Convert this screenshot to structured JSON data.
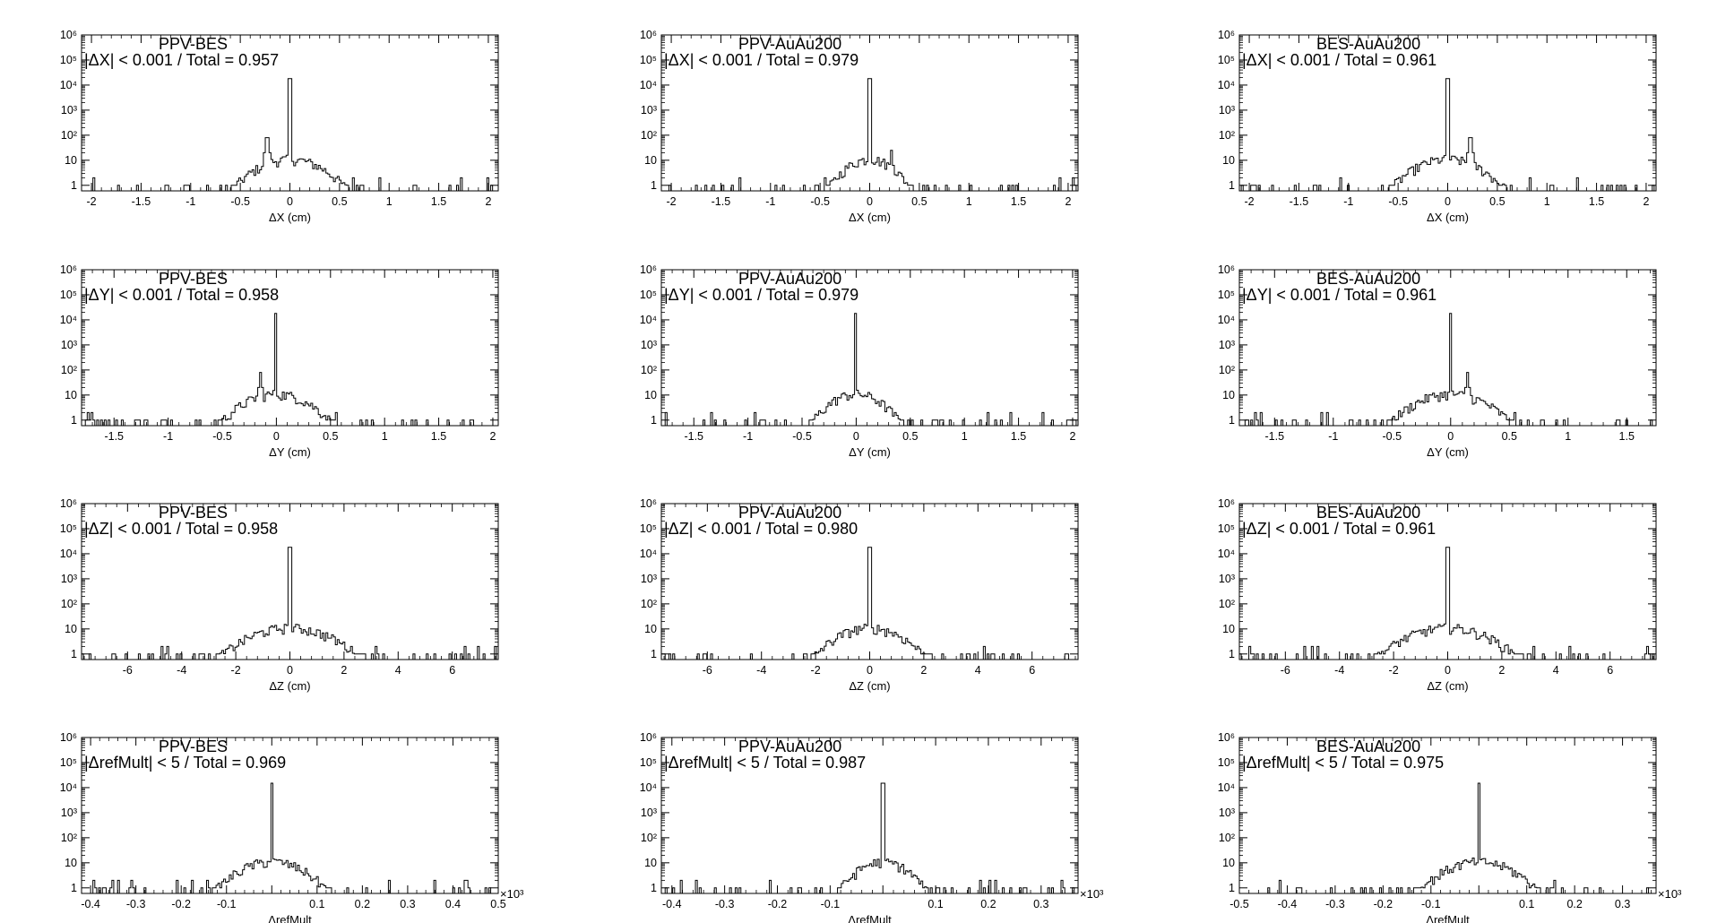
{
  "chart_data": [
    {
      "type": "histogram",
      "dataset": "PPV-BES",
      "ratio_text": "|ΔX| < 0.001 / Total = 0.957",
      "xlabel": "ΔX (cm)",
      "xlim": [
        -2.1,
        2.1
      ],
      "xticks": [
        "-2",
        "-1.5",
        "-1",
        "-0.5",
        "0",
        "0.5",
        "1",
        "1.5",
        "2"
      ],
      "yscale": "log",
      "ylim": [
        0.6,
        1000000
      ],
      "yticks": [
        "1",
        "10",
        "10²",
        "10³",
        "10⁴",
        "10⁵",
        "10⁶"
      ],
      "peak": {
        "x": 0,
        "y": 18000
      },
      "side_peaks": [
        {
          "x": -0.23,
          "y": 80
        }
      ],
      "spread": 0.55,
      "baseline": "1"
    },
    {
      "type": "histogram",
      "dataset": "PPV-AuAu200",
      "ratio_text": "|ΔX| < 0.001 / Total = 0.979",
      "xlabel": "ΔX (cm)",
      "xlim": [
        -2.1,
        2.1
      ],
      "xticks": [
        "-2",
        "-1.5",
        "-1",
        "-0.5",
        "0",
        "0.5",
        "1",
        "1.5",
        "2"
      ],
      "yscale": "log",
      "ylim": [
        0.6,
        1000000
      ],
      "yticks": [
        "1",
        "10",
        "10²",
        "10³",
        "10⁴",
        "10⁵",
        "10⁶"
      ],
      "peak": {
        "x": 0,
        "y": 18000
      },
      "side_peaks": [
        {
          "x": 0.22,
          "y": 25
        }
      ],
      "spread": 0.4,
      "baseline": "1"
    },
    {
      "type": "histogram",
      "dataset": "BES-AuAu200",
      "ratio_text": "|ΔX| < 0.001 / Total = 0.961",
      "xlabel": "ΔX (cm)",
      "xlim": [
        -2.1,
        2.1
      ],
      "xticks": [
        "-2",
        "-1.5",
        "-1",
        "-0.5",
        "0",
        "0.5",
        "1",
        "1.5",
        "2"
      ],
      "yscale": "log",
      "ylim": [
        0.6,
        1000000
      ],
      "yticks": [
        "1",
        "10",
        "10²",
        "10³",
        "10⁴",
        "10⁵",
        "10⁶"
      ],
      "peak": {
        "x": 0,
        "y": 18000
      },
      "side_peaks": [
        {
          "x": 0.23,
          "y": 80
        }
      ],
      "spread": 0.55,
      "baseline": "1"
    },
    {
      "type": "histogram",
      "dataset": "PPV-BES",
      "ratio_text": "|ΔY| < 0.001 / Total = 0.958",
      "xlabel": "ΔY (cm)",
      "xlim": [
        -1.8,
        2.05
      ],
      "xticks": [
        "-1.5",
        "-1",
        "-0.5",
        "0",
        "0.5",
        "1",
        "1.5",
        "2"
      ],
      "yscale": "log",
      "ylim": [
        0.6,
        1000000
      ],
      "yticks": [
        "1",
        "10",
        "10²",
        "10³",
        "10⁴",
        "10⁵",
        "10⁶"
      ],
      "peak": {
        "x": 0,
        "y": 18000
      },
      "side_peaks": [
        {
          "x": -0.15,
          "y": 80
        }
      ],
      "spread": 0.5,
      "baseline": "1"
    },
    {
      "type": "histogram",
      "dataset": "PPV-AuAu200",
      "ratio_text": "|ΔY| < 0.001 / Total = 0.979",
      "xlabel": "ΔY (cm)",
      "xlim": [
        -1.8,
        2.05
      ],
      "xticks": [
        "-1.5",
        "-1",
        "-0.5",
        "0",
        "0.5",
        "1",
        "1.5",
        "2"
      ],
      "yscale": "log",
      "ylim": [
        0.6,
        1000000
      ],
      "yticks": [
        "1",
        "10",
        "10²",
        "10³",
        "10⁴",
        "10⁵",
        "10⁶"
      ],
      "peak": {
        "x": 0,
        "y": 18000
      },
      "side_peaks": [],
      "spread": 0.4,
      "baseline": "1"
    },
    {
      "type": "histogram",
      "dataset": "BES-AuAu200",
      "ratio_text": "|ΔY| < 0.001 / Total = 0.961",
      "xlabel": "ΔY (cm)",
      "xlim": [
        -1.8,
        1.75
      ],
      "xticks": [
        "-1.5",
        "-1",
        "-0.5",
        "0",
        "0.5",
        "1",
        "1.5"
      ],
      "yscale": "log",
      "ylim": [
        0.6,
        1000000
      ],
      "yticks": [
        "1",
        "10",
        "10²",
        "10³",
        "10⁴",
        "10⁵",
        "10⁶"
      ],
      "peak": {
        "x": 0,
        "y": 18000
      },
      "side_peaks": [
        {
          "x": 0.15,
          "y": 80
        }
      ],
      "spread": 0.5,
      "baseline": "1"
    },
    {
      "type": "histogram",
      "dataset": "PPV-BES",
      "ratio_text": "|ΔZ| < 0.001 / Total = 0.958",
      "xlabel": "ΔZ (cm)",
      "xlim": [
        -7.7,
        7.7
      ],
      "xticks": [
        "-6",
        "-4",
        "-2",
        "0",
        "2",
        "4",
        "6"
      ],
      "yscale": "log",
      "ylim": [
        0.6,
        1000000
      ],
      "yticks": [
        "1",
        "10",
        "10²",
        "10³",
        "10⁴",
        "10⁵",
        "10⁶"
      ],
      "peak": {
        "x": 0,
        "y": 18000
      },
      "side_peaks": [],
      "spread": 2.5,
      "baseline": "1"
    },
    {
      "type": "histogram",
      "dataset": "PPV-AuAu200",
      "ratio_text": "|ΔZ| < 0.001 / Total = 0.980",
      "xlabel": "ΔZ (cm)",
      "xlim": [
        -7.7,
        7.7
      ],
      "xticks": [
        "-6",
        "-4",
        "-2",
        "0",
        "2",
        "4",
        "6"
      ],
      "yscale": "log",
      "ylim": [
        0.6,
        1000000
      ],
      "yticks": [
        "1",
        "10",
        "10²",
        "10³",
        "10⁴",
        "10⁵",
        "10⁶"
      ],
      "peak": {
        "x": 0,
        "y": 18000
      },
      "side_peaks": [],
      "spread": 2.0,
      "baseline": "1"
    },
    {
      "type": "histogram",
      "dataset": "BES-AuAu200",
      "ratio_text": "|ΔZ| < 0.001 / Total = 0.961",
      "xlabel": "ΔZ (cm)",
      "xlim": [
        -7.7,
        7.7
      ],
      "xticks": [
        "-6",
        "-4",
        "-2",
        "0",
        "2",
        "4",
        "6"
      ],
      "yscale": "log",
      "ylim": [
        0.6,
        1000000
      ],
      "yticks": [
        "1",
        "10",
        "10²",
        "10³",
        "10⁴",
        "10⁵",
        "10⁶"
      ],
      "peak": {
        "x": 0,
        "y": 18000
      },
      "side_peaks": [],
      "spread": 2.5,
      "baseline": "1"
    },
    {
      "type": "histogram",
      "dataset": "PPV-BES",
      "ratio_text": "|ΔrefMult| < 5 / Total = 0.969",
      "xlabel": "ΔrefMult",
      "xmultiplier": "×10³",
      "xlim": [
        -0.42,
        0.5
      ],
      "xticks": [
        "-0.4",
        "-0.3",
        "-0.2",
        "-0.1",
        "0.1",
        "0.2",
        "0.3",
        "0.4",
        "0.5"
      ],
      "yscale": "log",
      "ylim": [
        0.6,
        1000000
      ],
      "yticks": [
        "1",
        "10",
        "10²",
        "10³",
        "10⁴",
        "10⁵",
        "10⁶"
      ],
      "peak": {
        "x": 0,
        "y": 15000
      },
      "side_peaks": [],
      "spread": 0.12,
      "baseline": "1"
    },
    {
      "type": "histogram",
      "dataset": "PPV-AuAu200",
      "ratio_text": "|ΔrefMult| < 5 / Total = 0.987",
      "xlabel": "ΔrefMult",
      "xmultiplier": "×10³",
      "xlim": [
        -0.42,
        0.37
      ],
      "xticks": [
        "-0.4",
        "-0.3",
        "-0.2",
        "-0.1",
        "0.1",
        "0.2",
        "0.3"
      ],
      "yscale": "log",
      "ylim": [
        0.6,
        1000000
      ],
      "yticks": [
        "1",
        "10",
        "10²",
        "10³",
        "10⁴",
        "10⁵",
        "10⁶"
      ],
      "peak": {
        "x": 0,
        "y": 15000
      },
      "side_peaks": [],
      "spread": 0.08,
      "baseline": "1"
    },
    {
      "type": "histogram",
      "dataset": "BES-AuAu200",
      "ratio_text": "|ΔrefMult| < 5 / Total = 0.975",
      "xlabel": "ΔrefMult",
      "xmultiplier": "×10³",
      "xlim": [
        -0.5,
        0.37
      ],
      "xticks": [
        "-0.5",
        "-0.4",
        "-0.3",
        "-0.2",
        "-0.1",
        "0.1",
        "0.2",
        "0.3"
      ],
      "yscale": "log",
      "ylim": [
        0.6,
        1000000
      ],
      "yticks": [
        "1",
        "10",
        "10²",
        "10³",
        "10⁴",
        "10⁵",
        "10⁶"
      ],
      "peak": {
        "x": 0,
        "y": 15000
      },
      "side_peaks": [],
      "spread": 0.12,
      "baseline": "1"
    }
  ]
}
